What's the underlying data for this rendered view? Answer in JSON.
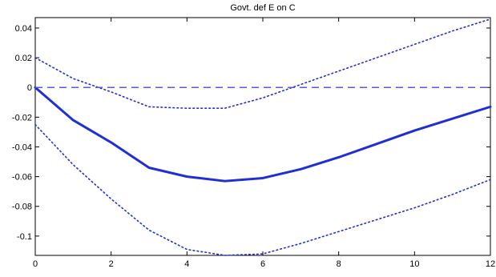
{
  "chart_data": {
    "type": "line",
    "title": "Govt. def E on C",
    "xlabel": "",
    "ylabel": "",
    "xlim": [
      0,
      12
    ],
    "ylim": [
      -0.113,
      0.047
    ],
    "x_ticks": [
      0,
      2,
      4,
      6,
      8,
      10,
      12
    ],
    "x_tick_labels": [
      "0",
      "2",
      "4",
      "6",
      "8",
      "10",
      "12"
    ],
    "y_ticks": [
      0.04,
      0.02,
      0,
      -0.02,
      -0.04,
      -0.06,
      -0.08,
      -0.1
    ],
    "y_tick_labels": [
      "0.04",
      "0.02",
      "0",
      "-0.02",
      "-0.04",
      "-0.06",
      "-0.08",
      "-0.1"
    ],
    "grid": false,
    "legend": "none",
    "x": [
      0,
      1,
      2,
      3,
      4,
      5,
      6,
      7,
      8,
      9,
      10,
      11,
      12
    ],
    "series": [
      {
        "role": "estimate",
        "style": "solid",
        "color": "#1f2fd6",
        "values": [
          0.0,
          -0.022,
          -0.037,
          -0.054,
          -0.06,
          -0.063,
          -0.061,
          -0.055,
          -0.047,
          -0.038,
          -0.029,
          -0.021,
          -0.013
        ]
      },
      {
        "role": "upper-band",
        "style": "dotted",
        "color": "#1f2fd6",
        "values": [
          0.02,
          0.006,
          -0.003,
          -0.013,
          -0.014,
          -0.014,
          -0.007,
          0.002,
          0.011,
          0.02,
          0.029,
          0.038,
          0.046
        ]
      },
      {
        "role": "lower-band",
        "style": "dotted",
        "color": "#1f2fd6",
        "values": [
          -0.025,
          -0.052,
          -0.075,
          -0.096,
          -0.109,
          -0.113,
          -0.112,
          -0.105,
          -0.097,
          -0.089,
          -0.081,
          -0.072,
          -0.062
        ]
      },
      {
        "role": "zero-line",
        "style": "dashed",
        "color": "#5a5ad8",
        "values": [
          0,
          0,
          0,
          0,
          0,
          0,
          0,
          0,
          0,
          0,
          0,
          0,
          0
        ]
      }
    ]
  }
}
